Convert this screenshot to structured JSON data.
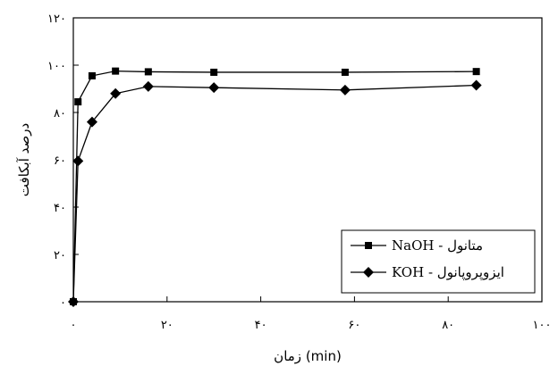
{
  "chart_data": {
    "type": "line",
    "title": "",
    "xlabel": "زمان (min)",
    "ylabel": "درصد آبکافت",
    "xlim": [
      0,
      100
    ],
    "ylim": [
      0,
      120
    ],
    "x_ticks": [
      0,
      20,
      40,
      60,
      80,
      100
    ],
    "x_tick_labels": [
      "۰",
      "۲۰",
      "۴۰",
      "۶۰",
      "۸۰",
      "۱۰۰"
    ],
    "y_ticks": [
      0,
      20,
      40,
      60,
      80,
      100,
      120
    ],
    "y_tick_labels": [
      "۰",
      "۲۰",
      "۴۰",
      "۶۰",
      "۸۰",
      "۱۰۰",
      "۱۲۰"
    ],
    "grid": false,
    "legend_position": "bottom-right",
    "series": [
      {
        "name": "NaOH - متانول",
        "marker": "square",
        "color": "#000000",
        "x": [
          0,
          1,
          4,
          9,
          16,
          30,
          58,
          86
        ],
        "y": [
          0,
          84.5,
          95.5,
          97.5,
          97.2,
          97.0,
          97.0,
          97.3
        ]
      },
      {
        "name": "KOH - ایزوپروپانول",
        "marker": "diamond",
        "color": "#000000",
        "x": [
          0,
          1,
          4,
          9,
          16,
          30,
          58,
          86
        ],
        "y": [
          0,
          59.5,
          76.0,
          88.0,
          91.0,
          90.5,
          89.5,
          91.5
        ]
      }
    ]
  }
}
